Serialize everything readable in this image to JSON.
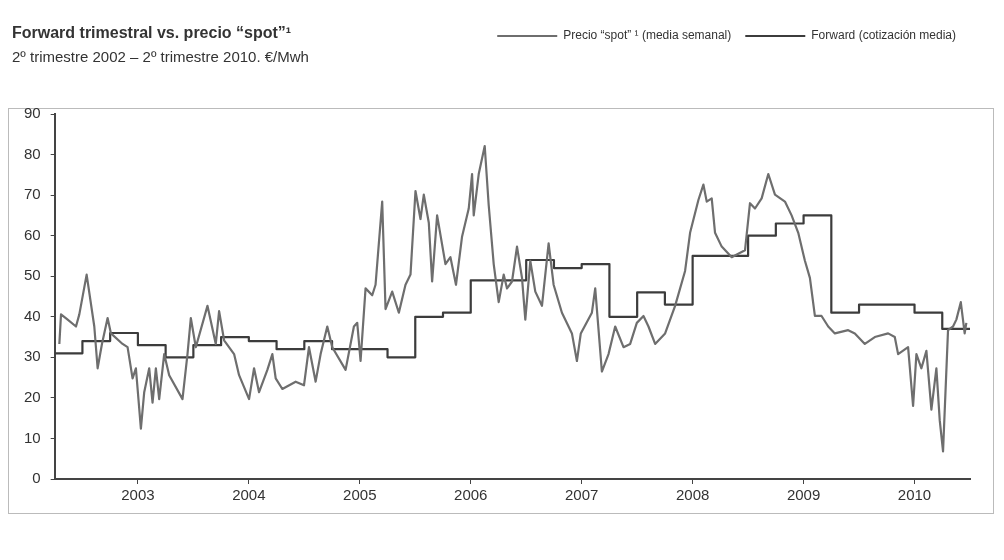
{
  "chart_data": {
    "type": "line",
    "title": "Forward  trimestral vs. precio  “spot”¹",
    "subtitle": "2º trimestre 2002  – 2º trimestre 2010.  €/Mwh",
    "legend": "top right",
    "grid": false,
    "xlim": [
      2002.25,
      2010.5
    ],
    "xticks": [
      2003,
      2004,
      2005,
      2006,
      2007,
      2008,
      2009,
      2010
    ],
    "ylim": [
      0,
      90
    ],
    "yticks": [
      0,
      10,
      20,
      30,
      40,
      50,
      60,
      70,
      80,
      90
    ],
    "series": [
      {
        "name": "Forward (cotización media)",
        "type": "step",
        "color": "#3c3c3c",
        "x": [
          2002.25,
          2002.5,
          2002.75,
          2003,
          2003.25,
          2003.5,
          2003.75,
          2004,
          2004.25,
          2004.5,
          2004.75,
          2005,
          2005.25,
          2005.5,
          2005.75,
          2006,
          2006.25,
          2006.5,
          2006.75,
          2007,
          2007.25,
          2007.5,
          2007.75,
          2008,
          2008.25,
          2008.5,
          2008.75,
          2009,
          2009.25,
          2009.5,
          2009.75,
          2010,
          2010.25,
          2010.5
        ],
        "values": [
          31,
          34,
          36,
          33,
          30,
          33,
          35,
          34,
          32,
          34,
          32,
          32,
          30,
          40,
          41,
          49,
          49,
          54,
          52,
          53,
          40,
          46,
          43,
          55,
          55,
          60,
          63,
          65,
          41,
          43,
          43,
          41,
          37,
          37
        ]
      },
      {
        "name": "Precio “spot” ¹ (media semanal)",
        "type": "line",
        "color": "#6e6e6e",
        "x": [
          2002.292,
          2002.307,
          2002.367,
          2002.442,
          2002.472,
          2002.538,
          2002.607,
          2002.637,
          2002.676,
          2002.727,
          2002.757,
          2002.862,
          2002.907,
          2002.952,
          2002.982,
          2003.027,
          2003.057,
          2003.102,
          2003.132,
          2003.162,
          2003.192,
          2003.237,
          2003.282,
          2003.402,
          2003.447,
          2003.477,
          2003.522,
          2003.627,
          2003.702,
          2003.732,
          2003.777,
          2003.867,
          2003.912,
          2004.002,
          2004.047,
          2004.092,
          2004.167,
          2004.212,
          2004.242,
          2004.302,
          2004.422,
          2004.497,
          2004.542,
          2004.602,
          2004.647,
          2004.707,
          2004.752,
          2004.872,
          2004.947,
          2004.977,
          2005.007,
          2005.052,
          2005.112,
          2005.142,
          2005.202,
          2005.232,
          2005.292,
          2005.352,
          2005.412,
          2005.457,
          2005.502,
          2005.547,
          2005.577,
          2005.622,
          2005.652,
          2005.697,
          2005.772,
          2005.817,
          2005.867,
          2005.922,
          2005.982,
          2006.012,
          2006.027,
          2006.072,
          2006.126,
          2006.162,
          2006.207,
          2006.252,
          2006.297,
          2006.327,
          2006.372,
          2006.417,
          2006.462,
          2006.492,
          2006.537,
          2006.582,
          2006.642,
          2006.702,
          2006.747,
          2006.822,
          2006.912,
          2006.957,
          2006.992,
          2007.092,
          2007.122,
          2007.182,
          2007.242,
          2007.302,
          2007.377,
          2007.437,
          2007.497,
          2007.557,
          2007.602,
          2007.662,
          2007.752,
          2007.842,
          2007.932,
          2007.977,
          2008.052,
          2008.097,
          2008.127,
          2008.172,
          2008.202,
          2008.262,
          2008.352,
          2008.472,
          2008.517,
          2008.562,
          2008.622,
          2008.682,
          2008.742,
          2008.832,
          2008.892,
          2008.952,
          2009.012,
          2009.057,
          2009.102,
          2009.162,
          2009.222,
          2009.282,
          2009.402,
          2009.462,
          2009.552,
          2009.642,
          2009.762,
          2009.822,
          2009.852,
          2009.942,
          2009.987,
          2010.017,
          2010.062,
          2010.107,
          2010.152,
          2010.197,
          2010.227,
          2010.257,
          2010.302,
          2010.347,
          2010.377,
          2010.417,
          2010.452,
          2010.467
        ],
        "values": [
          33.3,
          40.6,
          39.3,
          37.6,
          40.6,
          50.4,
          37.6,
          27.3,
          33.3,
          39.7,
          35.9,
          33.3,
          32.5,
          24.8,
          27.3,
          12.4,
          21.4,
          27.3,
          18.8,
          27.3,
          19.7,
          30.8,
          25.6,
          19.7,
          30.8,
          39.7,
          32.5,
          42.7,
          33.3,
          41.4,
          34.2,
          30.8,
          25.6,
          19.7,
          27.3,
          21.4,
          26.9,
          30.8,
          24.8,
          22.2,
          24,
          23.1,
          32.5,
          24,
          30.8,
          37.6,
          32.5,
          26.9,
          37.6,
          38.5,
          29.1,
          47,
          45.3,
          47.9,
          68.4,
          41.9,
          46.2,
          41,
          47.9,
          50.4,
          71,
          64.1,
          70.1,
          63.2,
          48.7,
          65,
          53,
          54.7,
          47.9,
          59.8,
          66.7,
          75.2,
          65,
          75.2,
          82.1,
          67.5,
          53,
          43.6,
          50.4,
          47,
          48.7,
          57.3,
          49.6,
          39.3,
          53.8,
          46.2,
          42.7,
          58.1,
          47.9,
          41,
          35.9,
          29.1,
          35.9,
          41,
          47,
          26.5,
          30.8,
          37.6,
          32.5,
          33.3,
          38.5,
          40.2,
          37.6,
          33.3,
          35.9,
          42.7,
          51.3,
          60.7,
          68.8,
          72.6,
          68.4,
          69.2,
          60.7,
          57.3,
          54.7,
          56.4,
          68,
          66.7,
          69.2,
          75.2,
          70.1,
          68.4,
          65,
          60.7,
          53.8,
          49.6,
          40.2,
          40.2,
          37.6,
          35.9,
          36.7,
          35.9,
          33.3,
          35,
          35.9,
          35,
          30.8,
          32.5,
          18,
          30.8,
          27.3,
          31.6,
          17.1,
          27.3,
          14.5,
          6.8,
          36.7,
          37.6,
          39.3,
          43.6,
          35.9,
          38.5
        ]
      }
    ]
  }
}
